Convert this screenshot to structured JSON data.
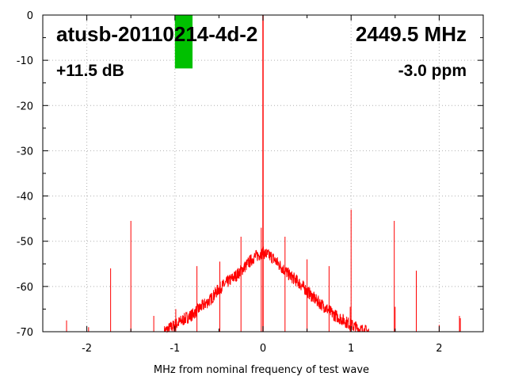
{
  "chart_data": {
    "type": "line",
    "title": "",
    "xlabel": "MHz from nominal frequency of test wave",
    "ylabel": "",
    "xlim": [
      -2.5,
      2.5
    ],
    "ylim": [
      -70,
      0
    ],
    "xticks": [
      -2,
      -1,
      0,
      1,
      2
    ],
    "xtick_labels": [
      "-2",
      "-1",
      "0",
      "1",
      "2"
    ],
    "yticks": [
      0,
      -10,
      -20,
      -30,
      -40,
      -50,
      -60,
      -70
    ],
    "ytick_labels": [
      "0",
      "-10",
      "-20",
      "-30",
      "-40",
      "-50",
      "-60",
      "-70"
    ],
    "grid": true,
    "line_color": "#ff0000",
    "level_bar": {
      "color": "#00c000",
      "x_from": -1.0,
      "x_to": -0.8,
      "y_top": 0,
      "y_bottom": -11.8
    },
    "carrier": {
      "x": 0.0,
      "y": 0.0
    },
    "spectrum_envelope": {
      "x": [
        -1.12,
        -1.0,
        -0.9,
        -0.8,
        -0.7,
        -0.6,
        -0.5,
        -0.4,
        -0.3,
        -0.2,
        -0.1,
        0.0,
        0.1,
        0.2,
        0.3,
        0.4,
        0.5,
        0.6,
        0.7,
        0.8,
        0.9,
        1.0,
        1.1,
        1.2
      ],
      "y": [
        -70,
        -68.5,
        -67.3,
        -66.2,
        -64.5,
        -63,
        -60.5,
        -59,
        -57.5,
        -55.5,
        -53.5,
        -52.5,
        -53.5,
        -55.5,
        -57.5,
        -59,
        -61,
        -63,
        -64.5,
        -66.2,
        -67.3,
        -68.5,
        -69.5,
        -70
      ]
    },
    "spurs": [
      {
        "x": -2.23,
        "y": -67.5
      },
      {
        "x": -1.98,
        "y": -69
      },
      {
        "x": -1.73,
        "y": -56
      },
      {
        "x": -1.5,
        "y": -45.5
      },
      {
        "x": -1.24,
        "y": -66.5
      },
      {
        "x": -0.99,
        "y": -65
      },
      {
        "x": -0.75,
        "y": -55.5
      },
      {
        "x": -0.49,
        "y": -54.5
      },
      {
        "x": -0.25,
        "y": -49
      },
      {
        "x": -0.02,
        "y": -47
      },
      {
        "x": 0.25,
        "y": -49
      },
      {
        "x": 0.5,
        "y": -54
      },
      {
        "x": 0.75,
        "y": -55.5
      },
      {
        "x": 0.99,
        "y": -64.5
      },
      {
        "x": 1.0,
        "y": -43
      },
      {
        "x": 1.49,
        "y": -45.5
      },
      {
        "x": 1.5,
        "y": -64.5
      },
      {
        "x": 1.74,
        "y": -56.5
      },
      {
        "x": 2.0,
        "y": -68.5
      },
      {
        "x": 2.23,
        "y": -66.5
      },
      {
        "x": 2.24,
        "y": -67
      }
    ]
  },
  "labels": {
    "device": "atusb-20110214-4d-2",
    "frequency": "2449.5 MHz",
    "gain": "+11.5 dB",
    "drift": "-3.0 ppm"
  }
}
